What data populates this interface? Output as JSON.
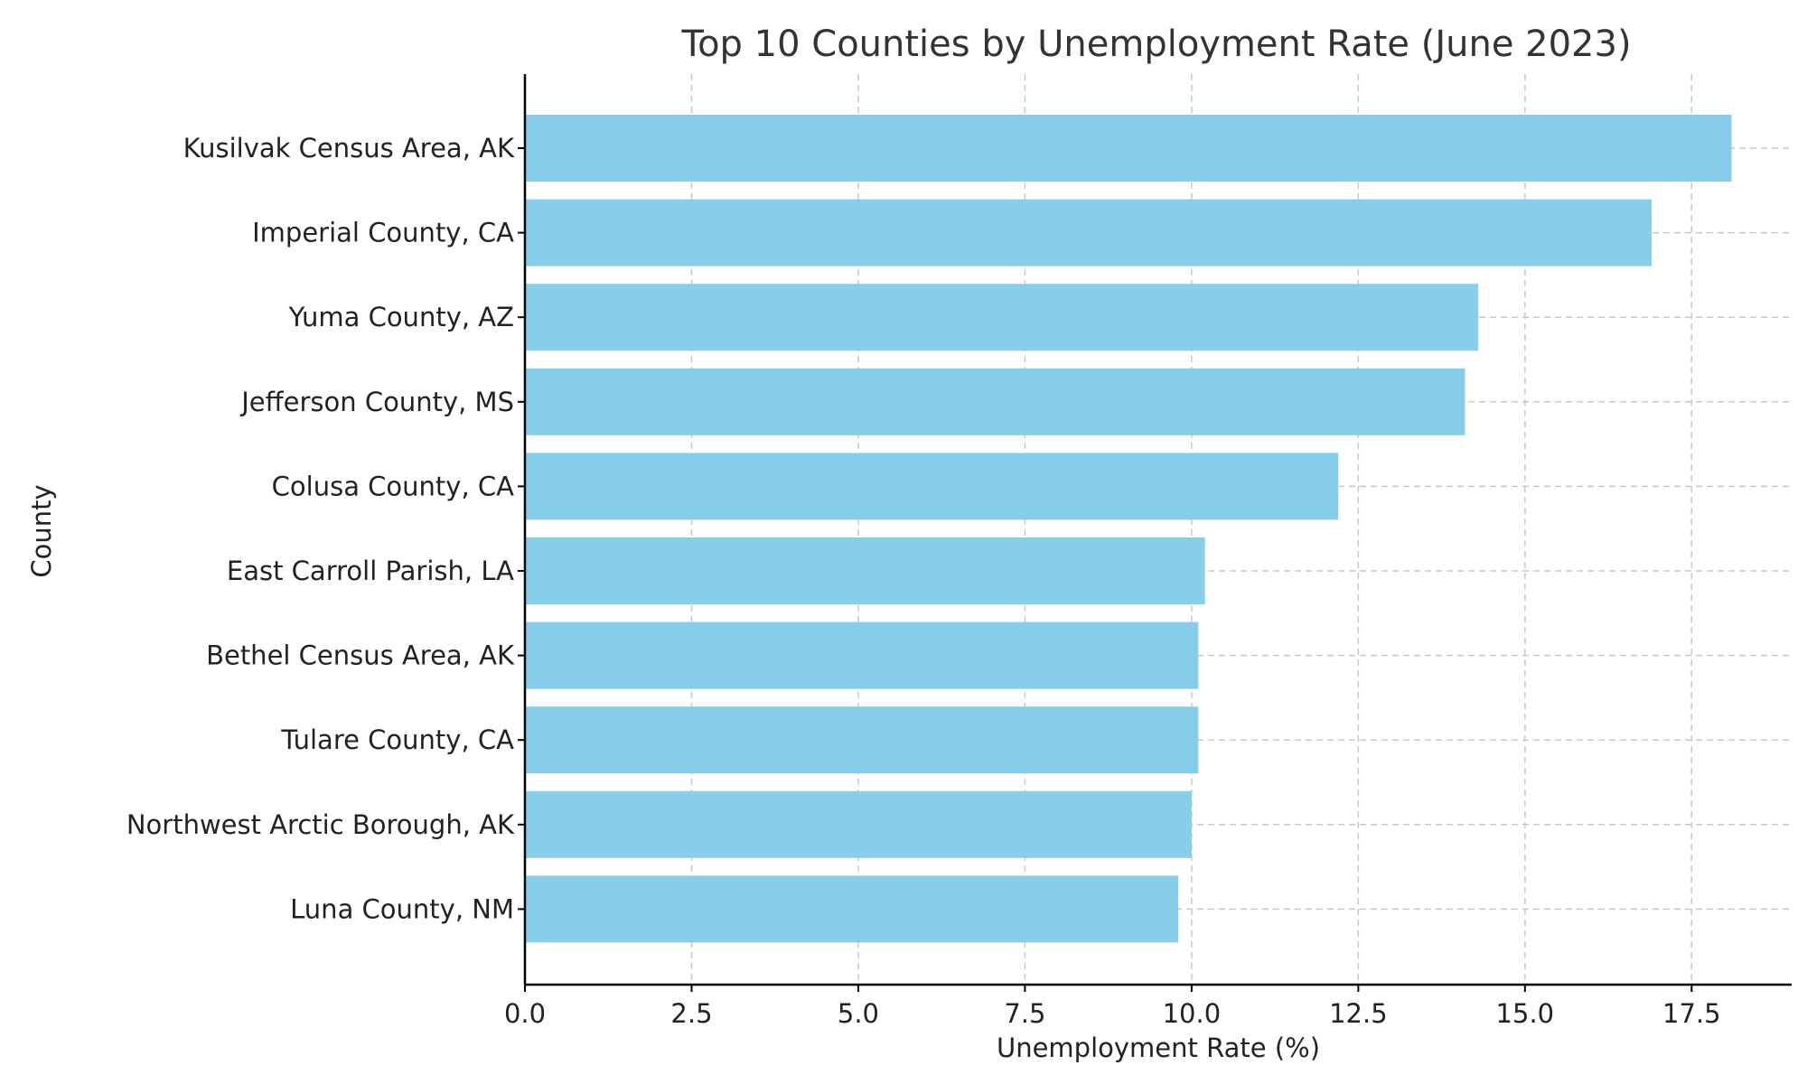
{
  "chart_data": {
    "type": "bar",
    "orientation": "horizontal",
    "title": "Top 10 Counties by Unemployment Rate (June 2023)",
    "xlabel": "Unemployment Rate (%)",
    "ylabel": "County",
    "xlim": [
      0,
      19
    ],
    "xticks": [
      "0.0",
      "2.5",
      "5.0",
      "7.5",
      "10.0",
      "12.5",
      "15.0",
      "17.5"
    ],
    "grid": true,
    "bar_color": "#87ceeb",
    "categories": [
      "Kusilvak Census Area, AK",
      "Imperial County, CA",
      "Yuma County, AZ",
      "Jefferson County, MS",
      "Colusa County, CA",
      "East Carroll Parish, LA",
      "Bethel Census Area, AK",
      "Tulare County, CA",
      "Northwest Arctic Borough, AK",
      "Luna County, NM"
    ],
    "values": [
      18.1,
      16.9,
      14.3,
      14.1,
      12.2,
      10.2,
      10.1,
      10.1,
      10.0,
      9.8
    ]
  }
}
